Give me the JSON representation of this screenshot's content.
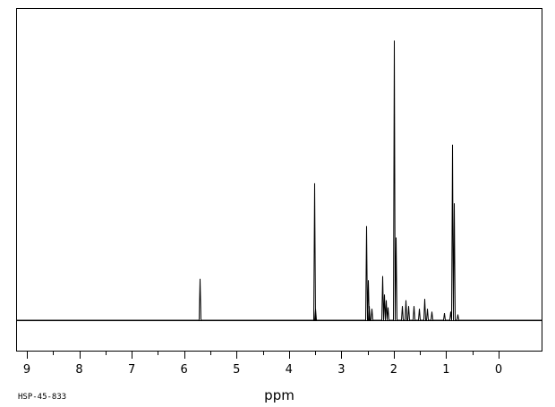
{
  "chart_data": {
    "type": "line",
    "xlabel": "ppm",
    "spectrum_code": "HSP-45-833",
    "xlim": [
      9.0,
      -0.8
    ],
    "ylim": [
      -0.1,
      1.05
    ],
    "x_ticks": [
      9,
      8,
      7,
      6,
      5,
      4,
      3,
      2,
      1,
      0
    ],
    "grid": false,
    "series": [
      {
        "peaks": [
          {
            "x": 5.71,
            "y": 0.145
          },
          {
            "x": 3.52,
            "y": 0.48
          },
          {
            "x": 3.5,
            "y": 0.04
          },
          {
            "x": 2.52,
            "y": 0.33
          },
          {
            "x": 2.5,
            "y": 0.14
          },
          {
            "x": 2.48,
            "y": 0.05
          },
          {
            "x": 2.42,
            "y": 0.04
          },
          {
            "x": 2.22,
            "y": 0.155
          },
          {
            "x": 2.19,
            "y": 0.09
          },
          {
            "x": 2.16,
            "y": 0.07
          },
          {
            "x": 2.12,
            "y": 0.045
          },
          {
            "x": 1.99,
            "y": 0.98
          },
          {
            "x": 1.97,
            "y": 0.29
          },
          {
            "x": 1.85,
            "y": 0.05
          },
          {
            "x": 1.78,
            "y": 0.07
          },
          {
            "x": 1.72,
            "y": 0.05
          },
          {
            "x": 1.62,
            "y": 0.05
          },
          {
            "x": 1.52,
            "y": 0.04
          },
          {
            "x": 1.42,
            "y": 0.075
          },
          {
            "x": 1.36,
            "y": 0.04
          },
          {
            "x": 1.28,
            "y": 0.03
          },
          {
            "x": 1.05,
            "y": 0.025
          },
          {
            "x": 0.92,
            "y": 0.03
          },
          {
            "x": 0.88,
            "y": 0.615
          },
          {
            "x": 0.86,
            "y": 0.41
          },
          {
            "x": 0.78,
            "y": 0.02
          }
        ]
      }
    ]
  }
}
